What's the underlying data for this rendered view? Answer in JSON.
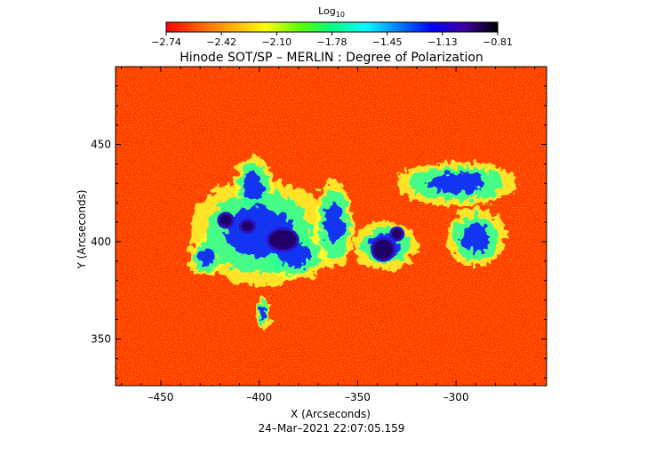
{
  "chart_data": {
    "type": "heatmap",
    "title": "Hinode SOT/SP – MERLIN : Degree of Polarization",
    "xlabel": "X (Arcseconds)",
    "ylabel": "Y (Arcseconds)",
    "timestamp": "24–Mar–2021 22:07:05.159",
    "xlim": [
      -473,
      -254
    ],
    "ylim": [
      326,
      490
    ],
    "x_ticks": [
      -450,
      -400,
      -350,
      -300
    ],
    "x_tick_labels": [
      "–450",
      "–400",
      "–350",
      "–300"
    ],
    "y_ticks": [
      350,
      400,
      450
    ],
    "y_tick_labels": [
      "350",
      "400",
      "450"
    ],
    "colorbar": {
      "title_base": "Log",
      "title_sub": "10",
      "range": [
        -2.74,
        -0.81
      ],
      "tick_labels": [
        "−2.74",
        "−2.42",
        "−2.10",
        "−1.78",
        "−1.45",
        "−1.13",
        "−0.81"
      ],
      "colormap": [
        "#ff0000",
        "#ff6000",
        "#ffb000",
        "#ffff00",
        "#60ff00",
        "#00ff80",
        "#00ffff",
        "#0080ff",
        "#0000ff",
        "#4000a0",
        "#000000"
      ]
    },
    "features": [
      {
        "kind": "sunspot",
        "x": -388,
        "y": 401,
        "rx": 7,
        "ry": 5
      },
      {
        "kind": "sunspot",
        "x": -337,
        "y": 396,
        "rx": 5,
        "ry": 5
      },
      {
        "kind": "sunspot",
        "x": -330,
        "y": 404,
        "rx": 2.5,
        "ry": 2.5
      },
      {
        "kind": "pore",
        "x": -417,
        "y": 411,
        "rx": 3,
        "ry": 3
      },
      {
        "kind": "pore",
        "x": -406,
        "y": 408,
        "rx": 3,
        "ry": 2.5
      },
      {
        "kind": "plage",
        "x": -400,
        "y": 405,
        "rx": 28,
        "ry": 22
      },
      {
        "kind": "plage",
        "x": -382,
        "y": 393,
        "rx": 14,
        "ry": 10
      },
      {
        "kind": "plage",
        "x": -403,
        "y": 429,
        "rx": 8,
        "ry": 12
      },
      {
        "kind": "plage",
        "x": -336,
        "y": 398,
        "rx": 13,
        "ry": 10
      },
      {
        "kind": "plage",
        "x": -300,
        "y": 430,
        "rx": 25,
        "ry": 9
      },
      {
        "kind": "plage",
        "x": -290,
        "y": 402,
        "rx": 12,
        "ry": 12
      },
      {
        "kind": "plage",
        "x": -362,
        "y": 409,
        "rx": 8,
        "ry": 18
      },
      {
        "kind": "plage",
        "x": -427,
        "y": 392,
        "rx": 7,
        "ry": 8
      },
      {
        "kind": "plage",
        "x": -398,
        "y": 363,
        "rx": 3,
        "ry": 7
      }
    ]
  }
}
